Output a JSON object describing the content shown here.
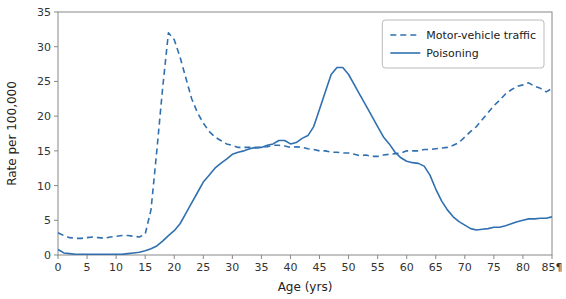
{
  "chart_data": {
    "type": "line",
    "x_label": "Age (yrs)",
    "y_label": "Rate per 100,000",
    "x": [
      0,
      1,
      2,
      3,
      4,
      5,
      6,
      7,
      8,
      9,
      10,
      11,
      12,
      13,
      14,
      15,
      16,
      17,
      18,
      19,
      20,
      21,
      22,
      23,
      24,
      25,
      26,
      27,
      28,
      29,
      30,
      31,
      32,
      33,
      34,
      35,
      36,
      37,
      38,
      39,
      40,
      41,
      42,
      43,
      44,
      45,
      46,
      47,
      48,
      49,
      50,
      51,
      52,
      53,
      54,
      55,
      56,
      57,
      58,
      59,
      60,
      61,
      62,
      63,
      64,
      65,
      66,
      67,
      68,
      69,
      70,
      71,
      72,
      73,
      74,
      75,
      76,
      77,
      78,
      79,
      80,
      81,
      82,
      83,
      84,
      85
    ],
    "series": [
      {
        "name": "Motor-vehicle traffic",
        "color": "#3070b0",
        "line_style": "dashed",
        "values": [
          3.2,
          2.8,
          2.5,
          2.4,
          2.4,
          2.5,
          2.6,
          2.5,
          2.4,
          2.6,
          2.7,
          2.8,
          2.8,
          2.7,
          2.6,
          3.0,
          6.5,
          15.0,
          24.0,
          32.0,
          31.0,
          28.5,
          25.5,
          22.5,
          20.5,
          19.0,
          17.8,
          17.0,
          16.5,
          16.0,
          15.8,
          15.5,
          15.5,
          15.5,
          15.4,
          15.5,
          15.6,
          15.8,
          15.8,
          15.7,
          15.5,
          15.6,
          15.5,
          15.3,
          15.2,
          15.0,
          15.0,
          14.8,
          14.8,
          14.7,
          14.7,
          14.5,
          14.3,
          14.4,
          14.2,
          14.2,
          14.4,
          14.5,
          14.6,
          14.7,
          15.0,
          15.0,
          15.0,
          15.2,
          15.2,
          15.3,
          15.4,
          15.5,
          15.8,
          16.2,
          17.0,
          17.8,
          18.5,
          19.5,
          20.5,
          21.5,
          22.3,
          23.2,
          23.8,
          24.3,
          24.5,
          24.8,
          24.3,
          24.0,
          23.5,
          24.0
        ]
      },
      {
        "name": "Poisoning",
        "color": "#3070b0",
        "line_style": "solid",
        "values": [
          0.8,
          0.3,
          0.2,
          0.1,
          0.1,
          0.1,
          0.1,
          0.1,
          0.1,
          0.1,
          0.1,
          0.1,
          0.2,
          0.3,
          0.4,
          0.6,
          0.9,
          1.3,
          2.0,
          2.8,
          3.5,
          4.5,
          6.0,
          7.5,
          9.0,
          10.5,
          11.5,
          12.5,
          13.2,
          13.8,
          14.5,
          14.8,
          15.0,
          15.3,
          15.5,
          15.5,
          15.8,
          16.0,
          16.5,
          16.5,
          16.0,
          16.2,
          16.8,
          17.2,
          18.5,
          21.0,
          23.5,
          26.0,
          27.0,
          27.0,
          26.0,
          24.5,
          23.0,
          21.5,
          20.0,
          18.5,
          17.0,
          16.0,
          14.8,
          14.0,
          13.5,
          13.3,
          13.2,
          12.8,
          11.5,
          9.5,
          7.8,
          6.5,
          5.5,
          4.8,
          4.3,
          3.8,
          3.6,
          3.7,
          3.8,
          4.0,
          4.0,
          4.2,
          4.5,
          4.8,
          5.0,
          5.2,
          5.2,
          5.3,
          5.3,
          5.5
        ]
      }
    ],
    "xlim": [
      0,
      85
    ],
    "ylim": [
      0,
      35
    ],
    "xticks": [
      0,
      5,
      10,
      15,
      20,
      25,
      30,
      35,
      40,
      45,
      50,
      55,
      60,
      65,
      70,
      75,
      80,
      {
        "value": 85,
        "label": "85¶"
      }
    ],
    "yticks": [
      0,
      5,
      10,
      15,
      20,
      25,
      30,
      35
    ],
    "grid": false,
    "legend": "upper right"
  }
}
